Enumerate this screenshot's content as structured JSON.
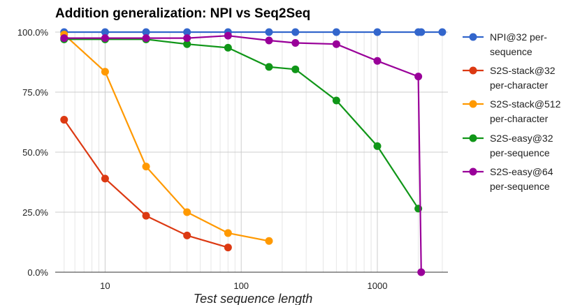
{
  "chart_data": {
    "type": "line",
    "title": "Addition generalization: NPI vs Seq2Seq",
    "xlabel": "Test sequence length",
    "ylabel": "",
    "x_scale": "log",
    "xlim": [
      4.3,
      3300
    ],
    "ylim": [
      0,
      1
    ],
    "x_ticks": [
      10,
      100,
      1000
    ],
    "x_tick_labels": [
      "10",
      "100",
      "1000"
    ],
    "y_ticks": [
      0,
      0.25,
      0.5,
      0.75,
      1.0
    ],
    "y_tick_labels": [
      "0.0%",
      "25.0%",
      "50.0%",
      "75.0%",
      "100.0%"
    ],
    "grid": true,
    "legend_position": "right",
    "series": [
      {
        "name": "NPI@32 per-sequence",
        "legend_lines": [
          "NPI@32 per-",
          "sequence"
        ],
        "color": "#3366cc",
        "x": [
          5,
          10,
          20,
          40,
          80,
          160,
          250,
          500,
          1000,
          2000,
          2100,
          3000
        ],
        "y": [
          1.0,
          1.0,
          1.0,
          1.0,
          1.0,
          1.0,
          1.0,
          1.0,
          1.0,
          1.0,
          1.0,
          1.0
        ]
      },
      {
        "name": "S2S-stack@32 per-character",
        "legend_lines": [
          "S2S-stack@32",
          "per-character"
        ],
        "color": "#dc3912",
        "x": [
          5,
          10,
          20,
          40,
          80
        ],
        "y": [
          0.635,
          0.39,
          0.235,
          0.153,
          0.103
        ]
      },
      {
        "name": "S2S-stack@512 per-character",
        "legend_lines": [
          "S2S-stack@512",
          "per-character"
        ],
        "color": "#ff9900",
        "x": [
          5,
          10,
          20,
          40,
          80,
          160
        ],
        "y": [
          0.99,
          0.835,
          0.44,
          0.25,
          0.163,
          0.13
        ]
      },
      {
        "name": "S2S-easy@32 per-sequence",
        "legend_lines": [
          "S2S-easy@32",
          "per-sequence"
        ],
        "color": "#109618",
        "x": [
          5,
          10,
          20,
          40,
          80,
          160,
          250,
          500,
          1000,
          2000
        ],
        "y": [
          0.97,
          0.97,
          0.97,
          0.95,
          0.935,
          0.855,
          0.845,
          0.715,
          0.525,
          0.265
        ]
      },
      {
        "name": "S2S-easy@64 per-sequence",
        "legend_lines": [
          "S2S-easy@64",
          "per-sequence"
        ],
        "color": "#990099",
        "x": [
          5,
          10,
          20,
          40,
          80,
          160,
          250,
          500,
          1000,
          2000,
          2100
        ],
        "y": [
          0.975,
          0.975,
          0.975,
          0.975,
          0.985,
          0.965,
          0.955,
          0.95,
          0.88,
          0.815,
          0.0
        ]
      }
    ]
  }
}
